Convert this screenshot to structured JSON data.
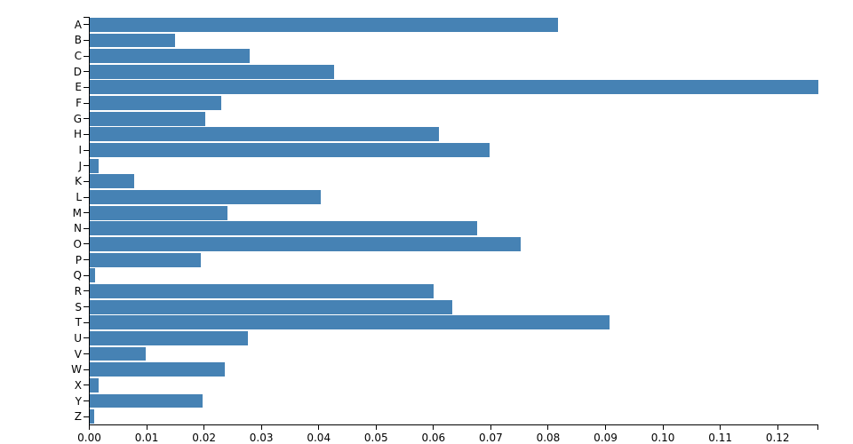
{
  "chart_data": {
    "type": "bar",
    "orientation": "horizontal",
    "title": "",
    "xlabel": "",
    "ylabel": "",
    "grid": false,
    "legend": null,
    "background_color": "#ffffff",
    "bar_color": "#4682b4",
    "axis_color": "#000000",
    "categories": [
      "A",
      "B",
      "C",
      "D",
      "E",
      "F",
      "G",
      "H",
      "I",
      "J",
      "K",
      "L",
      "M",
      "N",
      "O",
      "P",
      "Q",
      "R",
      "S",
      "T",
      "U",
      "V",
      "W",
      "X",
      "Y",
      "Z"
    ],
    "values": [
      0.08167,
      0.01492,
      0.02782,
      0.04253,
      0.12702,
      0.02288,
      0.02015,
      0.06094,
      0.06966,
      0.00153,
      0.00772,
      0.04025,
      0.02406,
      0.06749,
      0.07507,
      0.01929,
      0.00095,
      0.05987,
      0.06327,
      0.09056,
      0.02758,
      0.00978,
      0.0236,
      0.0015,
      0.01974,
      0.00074
    ],
    "xlim": [
      0,
      0.12702
    ],
    "x_tick_values": [
      0.0,
      0.01,
      0.02,
      0.03,
      0.04,
      0.05,
      0.06,
      0.07,
      0.08,
      0.09,
      0.1,
      0.11,
      0.12
    ],
    "x_tick_labels": [
      "0.00",
      "0.01",
      "0.02",
      "0.03",
      "0.04",
      "0.05",
      "0.06",
      "0.07",
      "0.08",
      "0.09",
      "0.10",
      "0.11",
      "0.12"
    ]
  }
}
